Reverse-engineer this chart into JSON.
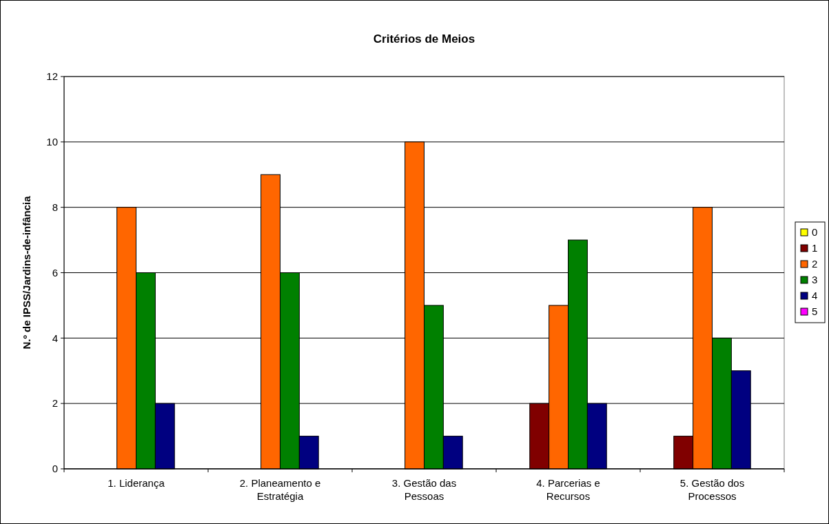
{
  "chart_data": {
    "type": "bar",
    "title": "Critérios de Meios",
    "ylabel": "N.º de IPSS/Jardins-de-infância",
    "categories": [
      "1. Liderança",
      "2. Planeamento e Estratégia",
      "3. Gestão das Pessoas",
      "4. Parcerias e Recursos",
      "5. Gestão dos Processos"
    ],
    "series": [
      {
        "name": "0",
        "color": "#ffff00",
        "values": [
          0,
          0,
          0,
          0,
          0
        ]
      },
      {
        "name": "1",
        "color": "#800000",
        "values": [
          0,
          0,
          0,
          2,
          1
        ]
      },
      {
        "name": "2",
        "color": "#ff6600",
        "values": [
          8,
          9,
          10,
          5,
          8
        ]
      },
      {
        "name": "3",
        "color": "#008000",
        "values": [
          6,
          6,
          5,
          7,
          4
        ]
      },
      {
        "name": "4",
        "color": "#000080",
        "values": [
          2,
          1,
          1,
          2,
          3
        ]
      },
      {
        "name": "5",
        "color": "#ff00ff",
        "values": [
          0,
          0,
          0,
          0,
          0
        ]
      }
    ],
    "ylim": [
      0,
      12
    ],
    "yticks": [
      0,
      2,
      4,
      6,
      8,
      10,
      12
    ],
    "grid": "y",
    "legend": "right"
  }
}
